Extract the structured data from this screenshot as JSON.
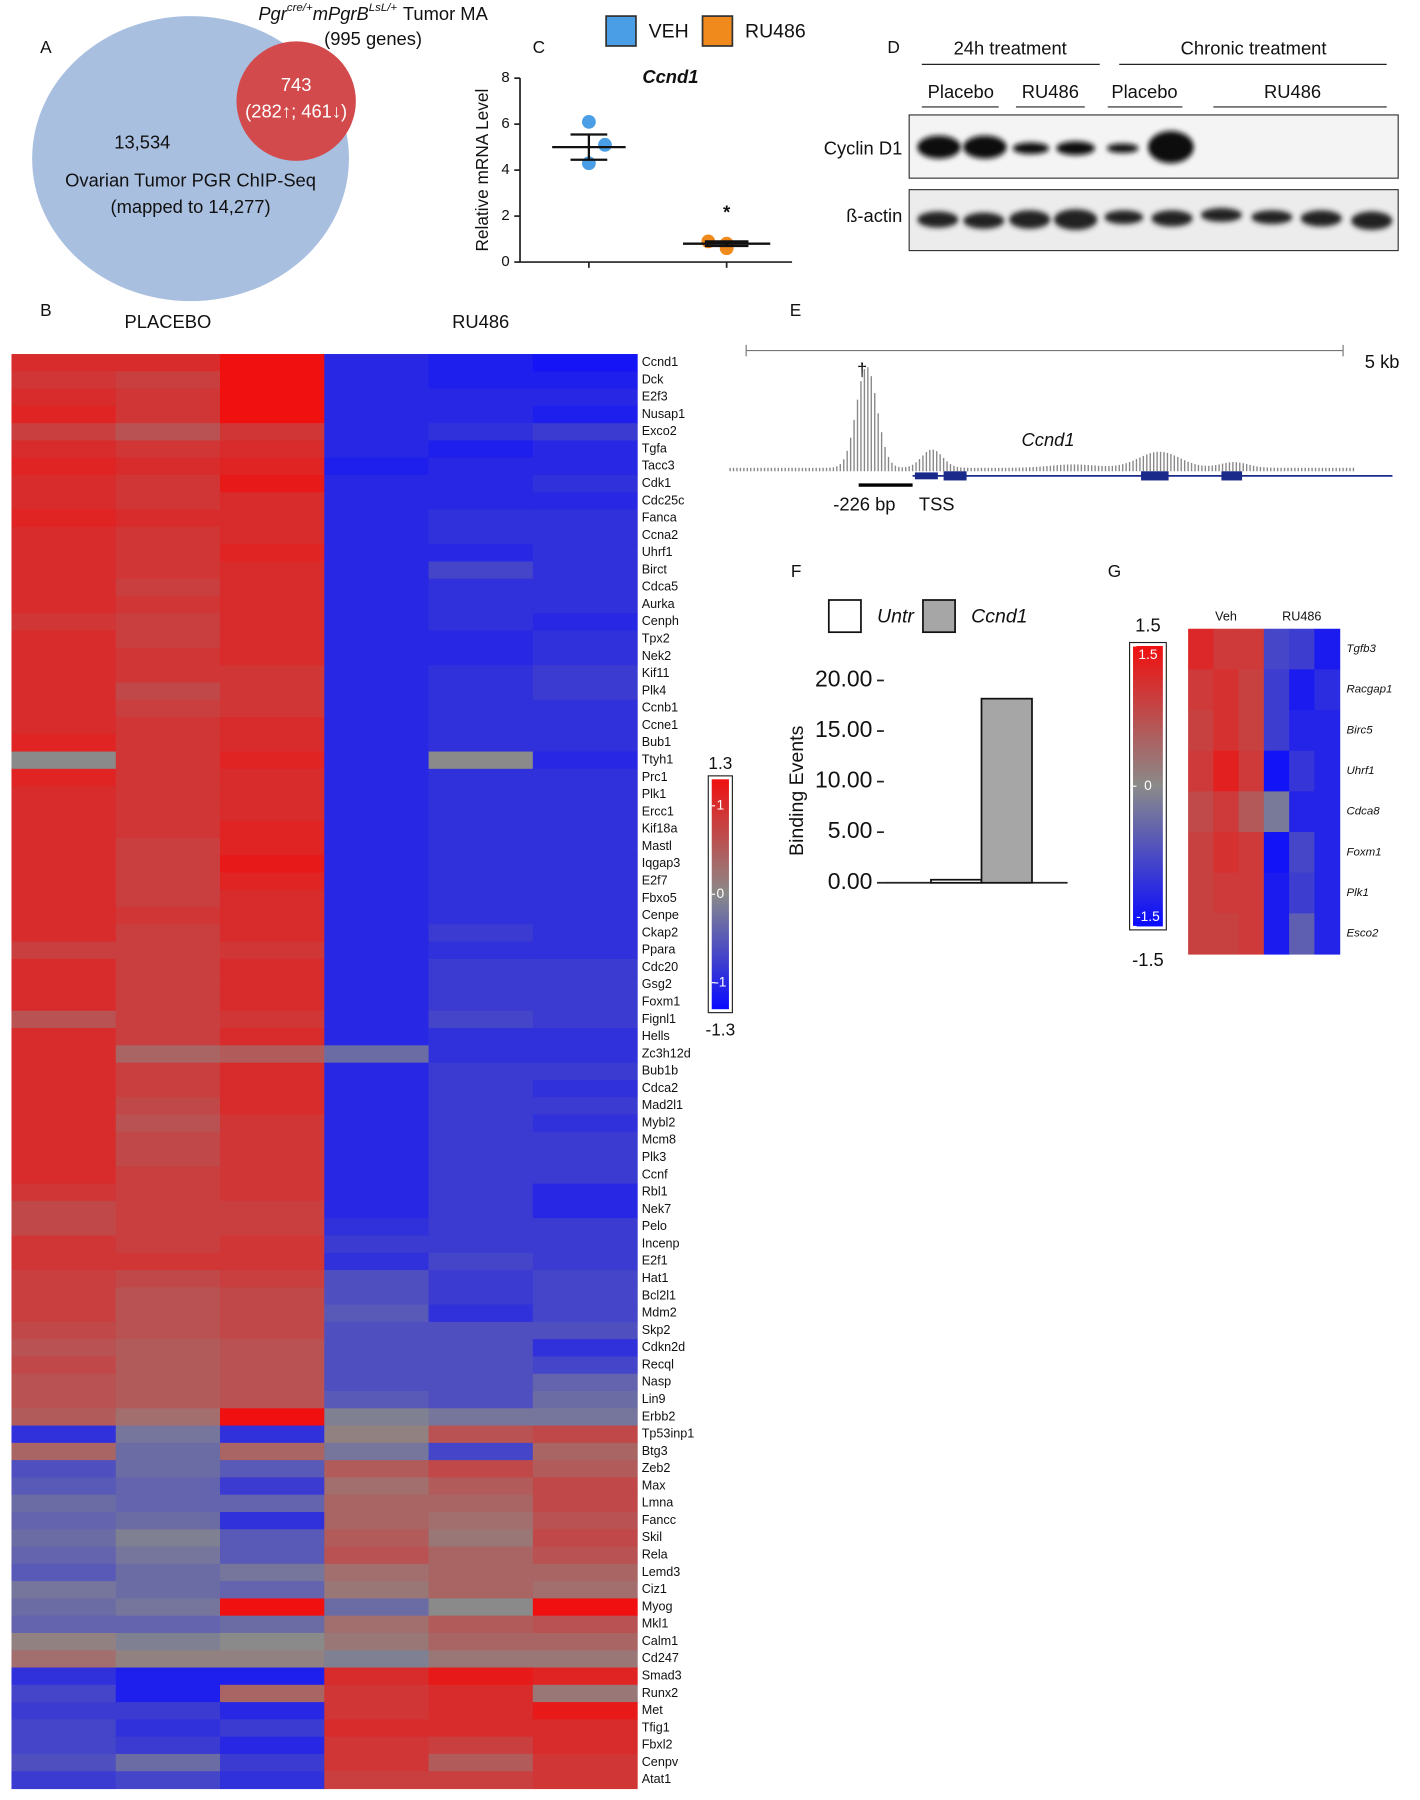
{
  "panel_labels": [
    "A",
    "B",
    "C",
    "D",
    "E",
    "F",
    "G"
  ],
  "venn": {
    "title_parts": [
      "Pgr",
      "cre/+",
      "mPgrB",
      "LsL/+",
      "Tumor MA"
    ],
    "subtitle": "(995 genes)",
    "overlap": "743",
    "overlap_detail": "(282↑; 461↓)",
    "left_only": "13,534",
    "set_label": "Ovarian Tumor PGR ChIP-Seq",
    "set_detail": "(mapped to 14,277)"
  },
  "western_blot": {
    "groups": [
      "24h treatment",
      "Chronic treatment"
    ],
    "lanes": [
      "Placebo",
      "RU486",
      "Placebo",
      "RU486"
    ],
    "rows": [
      "Cyclin D1",
      "ß-actin"
    ]
  },
  "genome_track": {
    "scale": "5 kb",
    "gene": "Ccnd1",
    "peak_mark": "†",
    "offset": "-226 bp",
    "tss": "TSS"
  },
  "chart_data": [
    {
      "type": "heatmap",
      "column_groups": [
        "PLACEBO",
        "RU486"
      ],
      "rows": [
        "Ccnd1",
        "Dck",
        "E2f3",
        "Nusap1",
        "Exco2",
        "Tgfa",
        "Tacc3",
        "Cdk1",
        "Cdc25c",
        "Fanca",
        "Ccna2",
        "Uhrf1",
        "Birct",
        "Cdca5",
        "Aurka",
        "Cenph",
        "Tpx2",
        "Nek2",
        "Kif11",
        "Plk4",
        "Ccnb1",
        "Ccne1",
        "Bub1",
        "Ttyh1",
        "Prc1",
        "Plk1",
        "Ercc1",
        "Kif18a",
        "Mastl",
        "Iqgap3",
        "E2f7",
        "Fbxo5",
        "Cenpe",
        "Ckap2",
        "Ppara",
        "Cdc20",
        "Gsg2",
        "Foxm1",
        "Fignl1",
        "Hells",
        "Zc3h12d",
        "Bub1b",
        "Cdca2",
        "Mad2l1",
        "Mybl2",
        "Mcm8",
        "Plk3",
        "Ccnf",
        "Rbl1",
        "Nek7",
        "Pelo",
        "Incenp",
        "E2f1",
        "Hat1",
        "Bcl2l1",
        "Mdm2",
        "Skp2",
        "Cdkn2d",
        "Recql",
        "Nasp",
        "Lin9",
        "Erbb2",
        "Tp53inp1",
        "Btg3",
        "Zeb2",
        "Max",
        "Lmna",
        "Fancc",
        "Skil",
        "Rela",
        "Lemd3",
        "Ciz1",
        "Myog",
        "Mkl1",
        "Calm1",
        "Cd247",
        "Smad3",
        "Runx2",
        "Met",
        "Tfig1",
        "Fbxl2",
        "Cenpv",
        "Atat1"
      ],
      "values": [
        [
          1.0,
          1.0,
          1.3,
          -1.0,
          -1.1,
          -1.2
        ],
        [
          0.9,
          0.8,
          1.3,
          -1.0,
          -1.1,
          -1.1
        ],
        [
          1.0,
          0.9,
          1.3,
          -1.0,
          -1.0,
          -1.0
        ],
        [
          1.1,
          0.9,
          1.3,
          -1.0,
          -1.0,
          -1.1
        ],
        [
          0.8,
          0.6,
          0.9,
          -1.0,
          -0.9,
          -0.8
        ],
        [
          1.0,
          0.9,
          1.0,
          -1.0,
          -1.1,
          -1.0
        ],
        [
          1.1,
          1.0,
          1.1,
          -1.1,
          -1.0,
          -1.0
        ],
        [
          1.0,
          0.9,
          1.2,
          -1.0,
          -1.0,
          -0.9
        ],
        [
          1.0,
          0.9,
          1.0,
          -1.0,
          -1.0,
          -1.0
        ],
        [
          1.1,
          1.0,
          1.0,
          -1.0,
          -0.9,
          -0.9
        ],
        [
          1.0,
          0.9,
          1.0,
          -1.0,
          -0.9,
          -0.9
        ],
        [
          1.0,
          0.9,
          1.1,
          -1.0,
          -1.0,
          -0.9
        ],
        [
          1.0,
          0.9,
          1.0,
          -1.0,
          -0.7,
          -0.9
        ],
        [
          1.0,
          0.8,
          1.0,
          -1.0,
          -0.9,
          -0.9
        ],
        [
          1.0,
          0.9,
          1.0,
          -1.0,
          -0.9,
          -0.9
        ],
        [
          0.9,
          0.8,
          1.0,
          -1.0,
          -0.9,
          -1.0
        ],
        [
          1.0,
          0.8,
          1.0,
          -1.0,
          -1.0,
          -0.9
        ],
        [
          1.0,
          0.9,
          1.0,
          -1.0,
          -1.0,
          -0.9
        ],
        [
          1.0,
          0.9,
          0.9,
          -1.0,
          -0.9,
          -0.8
        ],
        [
          1.0,
          0.7,
          0.9,
          -1.0,
          -0.9,
          -0.8
        ],
        [
          1.0,
          0.8,
          0.9,
          -1.0,
          -0.9,
          -0.9
        ],
        [
          1.0,
          0.9,
          1.0,
          -1.0,
          -0.9,
          -0.9
        ],
        [
          1.1,
          0.9,
          1.0,
          -1.0,
          -0.9,
          -0.9
        ],
        [
          0.0,
          0.9,
          1.1,
          -1.0,
          0.0,
          -1.0
        ],
        [
          1.1,
          0.9,
          1.0,
          -1.0,
          -0.9,
          -0.9
        ],
        [
          1.0,
          0.9,
          1.0,
          -1.0,
          -0.9,
          -0.9
        ],
        [
          1.0,
          0.9,
          1.0,
          -1.0,
          -0.9,
          -0.9
        ],
        [
          1.0,
          0.9,
          1.1,
          -1.0,
          -0.9,
          -0.9
        ],
        [
          1.0,
          0.8,
          1.1,
          -1.0,
          -0.9,
          -0.9
        ],
        [
          1.0,
          0.8,
          1.2,
          -1.0,
          -0.9,
          -0.9
        ],
        [
          1.0,
          0.8,
          1.1,
          -1.0,
          -0.9,
          -0.9
        ],
        [
          1.0,
          0.8,
          1.0,
          -1.0,
          -0.9,
          -0.9
        ],
        [
          1.0,
          0.9,
          1.0,
          -1.0,
          -0.9,
          -0.9
        ],
        [
          1.0,
          0.8,
          1.0,
          -1.0,
          -0.8,
          -0.9
        ],
        [
          0.8,
          0.8,
          0.9,
          -1.0,
          -0.9,
          -0.9
        ],
        [
          1.0,
          0.8,
          1.0,
          -1.0,
          -0.8,
          -0.8
        ],
        [
          1.0,
          0.8,
          1.0,
          -1.0,
          -0.8,
          -0.8
        ],
        [
          1.0,
          0.8,
          1.0,
          -1.0,
          -0.8,
          -0.8
        ],
        [
          0.6,
          0.8,
          0.9,
          -1.0,
          -0.7,
          -0.8
        ],
        [
          1.0,
          0.8,
          1.0,
          -1.0,
          -0.9,
          -0.9
        ],
        [
          1.0,
          0.4,
          0.5,
          -0.3,
          -0.9,
          -0.9
        ],
        [
          1.0,
          0.8,
          1.0,
          -1.0,
          -0.8,
          -0.8
        ],
        [
          1.0,
          0.8,
          1.0,
          -1.0,
          -0.8,
          -0.9
        ],
        [
          1.0,
          0.7,
          1.0,
          -1.0,
          -0.8,
          -0.8
        ],
        [
          1.0,
          0.6,
          0.9,
          -1.0,
          -0.8,
          -0.9
        ],
        [
          1.0,
          0.7,
          0.9,
          -1.0,
          -0.8,
          -0.8
        ],
        [
          1.0,
          0.7,
          0.9,
          -1.0,
          -0.8,
          -0.8
        ],
        [
          1.0,
          0.8,
          0.9,
          -1.0,
          -0.8,
          -0.8
        ],
        [
          0.9,
          0.8,
          0.9,
          -1.0,
          -0.8,
          -1.0
        ],
        [
          0.7,
          0.8,
          0.8,
          -1.0,
          -0.8,
          -1.0
        ],
        [
          0.7,
          0.8,
          0.8,
          -0.9,
          -0.8,
          -0.8
        ],
        [
          0.9,
          0.8,
          0.9,
          -0.8,
          -0.8,
          -0.8
        ],
        [
          0.9,
          0.9,
          0.9,
          -0.9,
          -0.7,
          -0.8
        ],
        [
          0.8,
          0.7,
          0.8,
          -0.6,
          -0.8,
          -0.7
        ],
        [
          0.8,
          0.6,
          0.7,
          -0.6,
          -0.8,
          -0.7
        ],
        [
          0.8,
          0.6,
          0.7,
          -0.5,
          -0.9,
          -0.7
        ],
        [
          0.7,
          0.6,
          0.7,
          -0.6,
          -0.6,
          -0.6
        ],
        [
          0.6,
          0.5,
          0.6,
          -0.6,
          -0.6,
          -0.9
        ],
        [
          0.7,
          0.5,
          0.6,
          -0.6,
          -0.6,
          -0.7
        ],
        [
          0.6,
          0.5,
          0.6,
          -0.6,
          -0.6,
          -0.4
        ],
        [
          0.6,
          0.5,
          0.6,
          -0.5,
          -0.6,
          -0.3
        ],
        [
          0.5,
          0.3,
          1.3,
          -0.1,
          -0.2,
          -0.2
        ],
        [
          -0.9,
          -0.2,
          -0.9,
          0.1,
          0.6,
          0.7
        ],
        [
          0.4,
          -0.3,
          0.4,
          -0.2,
          -0.7,
          0.4
        ],
        [
          -0.6,
          -0.3,
          -0.5,
          0.5,
          0.7,
          0.5
        ],
        [
          -0.5,
          -0.4,
          -0.8,
          0.3,
          0.5,
          0.7
        ],
        [
          -0.3,
          -0.4,
          -0.4,
          0.4,
          0.4,
          0.7
        ],
        [
          -0.4,
          -0.3,
          -0.9,
          0.4,
          0.3,
          0.6
        ],
        [
          -0.3,
          -0.1,
          -0.5,
          0.5,
          0.2,
          0.7
        ],
        [
          -0.4,
          -0.2,
          -0.5,
          0.6,
          0.4,
          0.6
        ],
        [
          -0.5,
          -0.3,
          -0.2,
          0.3,
          0.4,
          0.4
        ],
        [
          -0.2,
          -0.3,
          -0.4,
          0.2,
          0.4,
          0.3
        ],
        [
          -0.3,
          -0.2,
          1.3,
          -0.3,
          0.0,
          1.3
        ],
        [
          -0.4,
          -0.4,
          -0.3,
          0.3,
          0.5,
          0.6
        ],
        [
          0.1,
          -0.1,
          0.0,
          0.2,
          0.4,
          0.4
        ],
        [
          0.3,
          0.1,
          0.1,
          -0.1,
          0.2,
          0.2
        ],
        [
          -0.9,
          -1.1,
          -1.1,
          1.0,
          1.2,
          1.1
        ],
        [
          -0.7,
          -1.1,
          0.4,
          0.9,
          1.0,
          0.2
        ],
        [
          -0.8,
          -0.8,
          -1.0,
          0.9,
          1.0,
          1.2
        ],
        [
          -0.7,
          -0.9,
          -0.8,
          1.0,
          1.0,
          1.0
        ],
        [
          -0.7,
          -0.8,
          -1.0,
          0.9,
          0.8,
          1.0
        ],
        [
          -0.6,
          -0.3,
          -0.8,
          0.9,
          0.5,
          0.9
        ],
        [
          -0.8,
          -0.7,
          -0.9,
          0.8,
          0.8,
          0.9
        ]
      ],
      "clim": [
        -1.3,
        1.3
      ],
      "cticks": [
        -1,
        0,
        1
      ],
      "colors": [
        "#0a0aff",
        "#8a8a8a",
        "#f01010"
      ]
    },
    {
      "type": "dot",
      "title": "Ccnd1",
      "y_label": "Relative mRNA Level",
      "ylim": [
        0,
        8
      ],
      "yticks": [
        0,
        2,
        4,
        6,
        8
      ],
      "series": [
        {
          "name": "VEH",
          "color": "#4a9ee6",
          "values": [
            6.1,
            5.1,
            4.3
          ],
          "mean": 5.0,
          "sem": 0.55
        },
        {
          "name": "RU486",
          "color": "#f08a1c",
          "values": [
            0.9,
            0.8,
            0.6
          ],
          "mean": 0.8,
          "sem": 0.1
        }
      ],
      "annotation": "*"
    },
    {
      "type": "bar",
      "y_label": "Binding Events",
      "categories": [
        "Untr",
        "Ccnd1"
      ],
      "values": [
        0.3,
        18.2
      ],
      "colors": [
        "#ffffff",
        "#a6a6a6"
      ],
      "ylim": [
        0,
        20
      ],
      "yticks": [
        {
          "value": 0,
          "label": "0.00"
        },
        {
          "value": 5,
          "label": "5.00"
        },
        {
          "value": 10,
          "label": "10.00"
        },
        {
          "value": 15,
          "label": "15.00"
        },
        {
          "value": 20,
          "label": "20.00"
        }
      ]
    },
    {
      "type": "heatmap",
      "column_groups": [
        "Veh",
        "RU486"
      ],
      "rows": [
        "Tgfb3",
        "Racgap1",
        "Birc5",
        "Uhrf1",
        "Cdca8",
        "Foxm1",
        "Plk1",
        "Esco2"
      ],
      "values": [
        [
          1.2,
          1.0,
          1.0,
          -0.8,
          -0.9,
          -1.3
        ],
        [
          1.0,
          1.1,
          0.9,
          -0.9,
          -1.3,
          -1.1
        ],
        [
          0.9,
          1.1,
          0.9,
          -0.9,
          -1.2,
          -1.2
        ],
        [
          1.0,
          1.3,
          1.0,
          -1.4,
          -1.0,
          -1.2
        ],
        [
          0.8,
          1.0,
          0.6,
          -0.2,
          -1.2,
          -1.2
        ],
        [
          0.9,
          1.1,
          1.0,
          -1.4,
          -0.8,
          -1.2
        ],
        [
          0.9,
          1.0,
          1.0,
          -1.3,
          -0.9,
          -1.2
        ],
        [
          0.9,
          0.9,
          1.0,
          -1.3,
          -0.5,
          -1.2
        ]
      ],
      "clim": [
        -1.5,
        1.5
      ],
      "cticks": [
        -1.5,
        0,
        1.5
      ],
      "colors": [
        "#0a0aff",
        "#8a8a8a",
        "#f01010"
      ]
    }
  ]
}
